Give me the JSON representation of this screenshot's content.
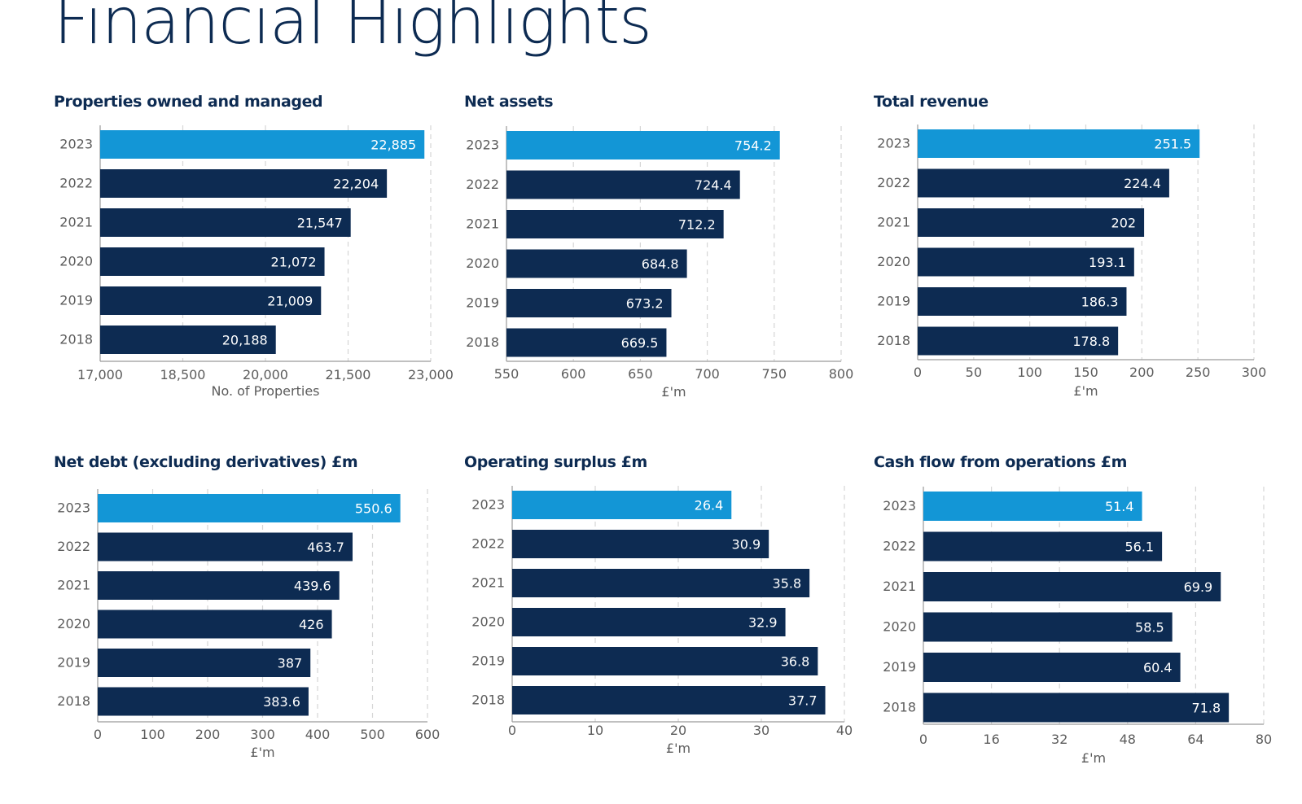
{
  "page": {
    "title": "Financial Highlights"
  },
  "colors": {
    "highlight": "#1396d6",
    "bar": "#0d2b52",
    "grid": "#d6d6d6",
    "axis": "#9a9a9a",
    "label": "#ffffff"
  },
  "chart_data": [
    {
      "type": "bar",
      "orientation": "horizontal",
      "title": "Properties owned and managed",
      "xlabel": "No. of Properties",
      "categories": [
        "2023",
        "2022",
        "2021",
        "2020",
        "2019",
        "2018"
      ],
      "values": [
        22885,
        22204,
        21547,
        21072,
        21009,
        20188
      ],
      "value_labels": [
        "22,885",
        "22,204",
        "21,547",
        "21,072",
        "21,009",
        "20,188"
      ],
      "xlim": [
        17000,
        23000
      ],
      "ticks": [
        17000,
        18500,
        20000,
        21500,
        23000
      ],
      "tick_labels": [
        "17,000",
        "18,500",
        "20,000",
        "21,500",
        "23,000"
      ],
      "grid": true,
      "highlight": "2023"
    },
    {
      "type": "bar",
      "orientation": "horizontal",
      "title": "Net assets",
      "xlabel": "£'m",
      "categories": [
        "2023",
        "2022",
        "2021",
        "2020",
        "2019",
        "2018"
      ],
      "values": [
        754.2,
        724.4,
        712.2,
        684.8,
        673.2,
        669.5
      ],
      "value_labels": [
        "754.2",
        "724.4",
        "712.2",
        "684.8",
        "673.2",
        "669.5"
      ],
      "xlim": [
        550,
        800
      ],
      "ticks": [
        550,
        600,
        650,
        700,
        750,
        800
      ],
      "tick_labels": [
        "550",
        "600",
        "650",
        "700",
        "750",
        "800"
      ],
      "grid": true,
      "highlight": "2023"
    },
    {
      "type": "bar",
      "orientation": "horizontal",
      "title": "Total revenue",
      "xlabel": "£'m",
      "categories": [
        "2023",
        "2022",
        "2021",
        "2020",
        "2019",
        "2018"
      ],
      "values": [
        251.5,
        224.4,
        202,
        193.1,
        186.3,
        178.8
      ],
      "value_labels": [
        "251.5",
        "224.4",
        "202",
        "193.1",
        "186.3",
        "178.8"
      ],
      "xlim": [
        0,
        300
      ],
      "ticks": [
        0,
        50,
        100,
        150,
        200,
        250,
        300
      ],
      "tick_labels": [
        "0",
        "50",
        "100",
        "150",
        "200",
        "250",
        "300"
      ],
      "grid": true,
      "highlight": "2023"
    },
    {
      "type": "bar",
      "orientation": "horizontal",
      "title": "Net debt (excluding derivatives) £m",
      "xlabel": "£'m",
      "categories": [
        "2023",
        "2022",
        "2021",
        "2020",
        "2019",
        "2018"
      ],
      "values": [
        550.6,
        463.7,
        439.6,
        426,
        387,
        383.6
      ],
      "value_labels": [
        "550.6",
        "463.7",
        "439.6",
        "426",
        "387",
        "383.6"
      ],
      "xlim": [
        0,
        600
      ],
      "ticks": [
        0,
        100,
        200,
        300,
        400,
        500,
        600
      ],
      "tick_labels": [
        "0",
        "100",
        "200",
        "300",
        "400",
        "500",
        "600"
      ],
      "grid": true,
      "highlight": "2023"
    },
    {
      "type": "bar",
      "orientation": "horizontal",
      "title": "Operating surplus £m",
      "xlabel": "£'m",
      "categories": [
        "2023",
        "2022",
        "2021",
        "2020",
        "2019",
        "2018"
      ],
      "values": [
        26.4,
        30.9,
        35.8,
        32.9,
        36.8,
        37.7
      ],
      "value_labels": [
        "26.4",
        "30.9",
        "35.8",
        "32.9",
        "36.8",
        "37.7"
      ],
      "xlim": [
        0,
        40
      ],
      "ticks": [
        0,
        10,
        20,
        30,
        40
      ],
      "tick_labels": [
        "0",
        "10",
        "20",
        "30",
        "40"
      ],
      "grid": true,
      "highlight": "2023"
    },
    {
      "type": "bar",
      "orientation": "horizontal",
      "title": "Cash flow from operations £m",
      "xlabel": "£'m",
      "categories": [
        "2023",
        "2022",
        "2021",
        "2020",
        "2019",
        "2018"
      ],
      "values": [
        51.4,
        56.1,
        69.9,
        58.5,
        60.4,
        71.8
      ],
      "value_labels": [
        "51.4",
        "56.1",
        "69.9",
        "58.5",
        "60.4",
        "71.8"
      ],
      "xlim": [
        0,
        80
      ],
      "ticks": [
        0,
        16,
        32,
        48,
        64,
        80
      ],
      "tick_labels": [
        "0",
        "16",
        "32",
        "48",
        "64",
        "80"
      ],
      "grid": true,
      "highlight": "2023"
    }
  ]
}
